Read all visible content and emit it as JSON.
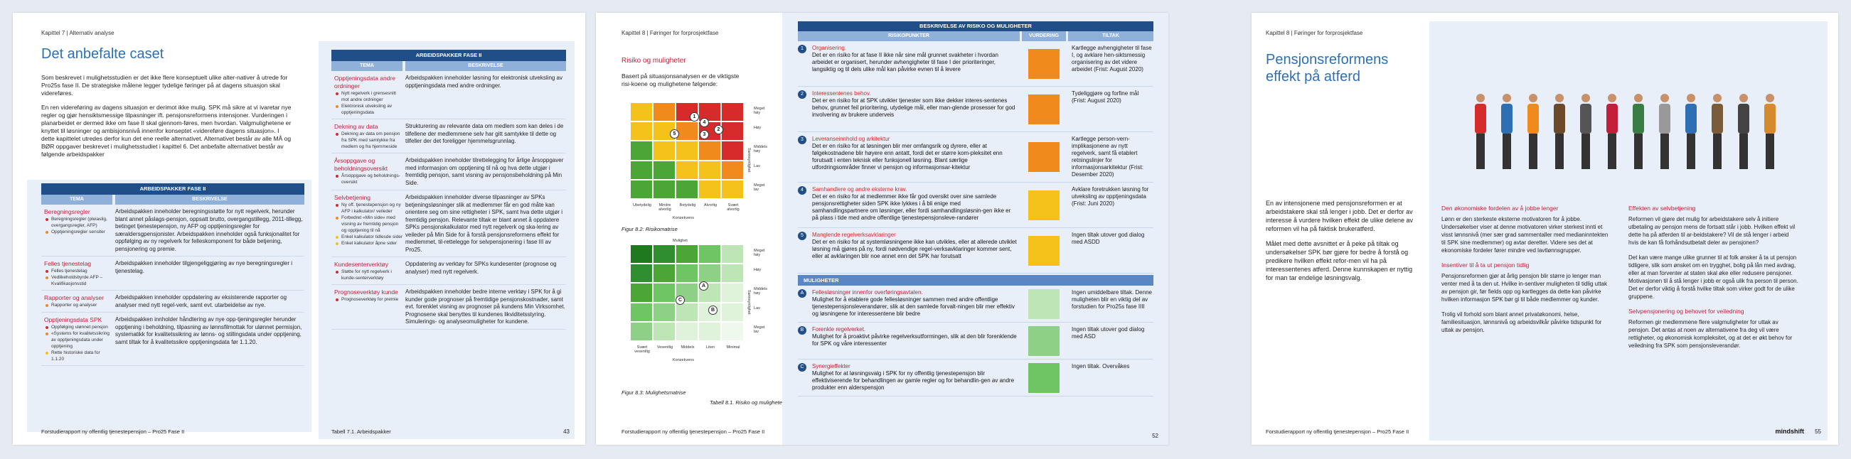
{
  "page1": {
    "chapter": "Kapittel 7 | Alternativ analyse",
    "title": "Det anbefalte caset",
    "intro_p1": "Som beskrevet i mulighetsstudien er det ikke flere konseptuelt ulike alter-nativer å utrede for Pro25s fase II. De strategiske målene legger tydelige føringer på at dagens situasjon skal videreføres.",
    "intro_p2": "En ren videreføring av dagens situasjon er derimot ikke mulig. SPK må sikre at vi ivaretar nye regler og gjør hensiktsmessige tilpasninger ift. pensjonsreformens intensjoner. Vurderingen i planarbeidet er dermed ikke om fase II skal gjennom-føres, men hvordan. Valgmulighetene er knyttet til løsninger og ambisjonsnivå innenfor konseptet «videreføre dagens situasjon». I dette kapittelet utredes derfor kun det ene reelle alternativet. Alternativet består av alle MÅ og BØR oppgaver beskrevet i mulighetsstudiet i kapittel 6. Det anbefalte alternativet består av følgende arbeidspakker",
    "table_title": "ARBEIDSPAKKER FASE II",
    "col_tema": "TEMA",
    "col_beskrivelse": "BESKRIVELSE",
    "left_rows": [
      {
        "tema": "Beregningsregler",
        "bullets": [
          {
            "c": "r",
            "t": "Beregningsregler (pleiaslig, overgangsregler, AFP)"
          },
          {
            "c": "o",
            "t": "Opptjeningsregler sensiter"
          }
        ],
        "desc": "Arbeidspakken inneholder beregningsstøtte for nytt regelverk, herunder blant annet påslags-pensjon, oppsatt brutto, overgangstillegg, 2011-tillegg, betinget tjenestepensjon, ny AFP og opptjeningsregler for særaldersgpensjonister. Arbeidspakken inneholder også funksjonalitet for oppfølging av ny regelverk for felleskomponent for både betjening, pensjonering og premie."
      },
      {
        "tema": "Felles tjenestelag",
        "bullets": [
          {
            "c": "r",
            "t": "Felles tjenestelag"
          },
          {
            "c": "o",
            "t": "Vedlikeholdsbyrde AFP – Kvalifikasjonsstid"
          }
        ],
        "desc": "Arbeidspakken inneholder tilgjengeliggjøring av nye beregningsregler i tjenestelag."
      },
      {
        "tema": "Rapporter og analyser",
        "bullets": [
          {
            "c": "o",
            "t": "Rapporter og analyser"
          }
        ],
        "desc": "Arbeidspakken inneholder oppdatering av eksisterende rapporter og analyser med nytt regel-verk, samt evt. utarbeidelse av nye."
      },
      {
        "tema": "Opptjeningsdata SPK",
        "bullets": [
          {
            "c": "r",
            "t": "Oppfølging ulønnet pensjon"
          },
          {
            "c": "o",
            "t": "«Systems for kvalitetssikring av opptjeningsdata under opptjening"
          },
          {
            "c": "y",
            "t": "Rette historiske data for 1.1.20"
          }
        ],
        "desc": "Arbeidspakken innholder håndtering av nye opp-tjeningsregler herunder opptjening i beholdning, tilpasning av lønnsfilmottak for ulønnet permisjon, systematikk for kvalitetssikring av lønns- og stillingsdata under opptjening, samt tiltak for å kvalitetssikre opptjeningsdata før 1.1.20."
      }
    ],
    "right_rows": [
      {
        "tema": "Opptjeningsdata andre ordninger",
        "bullets": [
          {
            "c": "r",
            "t": "Nytt regelverk i grensesnitt mot andre ordninger"
          },
          {
            "c": "o",
            "t": "Elektronisk utveksling av opptjeningsdata"
          }
        ],
        "desc": "Arbeidspakken inneholder løsning for elektronisk utveksling av opptjeningsdata med andre ordninger."
      },
      {
        "tema": "Dekning av data",
        "bullets": [
          {
            "c": "r",
            "t": "Dekning av data om pensjon fra SPK med samtykke fra medlem og fra hjemmeside"
          }
        ],
        "desc": "Strukturering av relevante data om medlem som kan deles i de tilfellene der medlemmene selv har gitt samtykke til dette og tilfeller der det foreligger hjemmelsgrunnlag."
      },
      {
        "tema": "Årsoppgave og beholdningsoversikt",
        "bullets": [
          {
            "c": "r",
            "t": "Årsoppgave og beholdnings-oversikt"
          }
        ],
        "desc": "Arbeidspakken inneholder tilrettelegging for årlige årsoppgaver med informasjon om opptjening til nå og hva dette utgjør i fremtidig pensjon, samt visning av pensjonsbeholdning på Min Side."
      },
      {
        "tema": "Selvbetjening",
        "bullets": [
          {
            "c": "r",
            "t": "Ny off. tjenestepensjon og ny AFP i kalkulator/ veileder"
          },
          {
            "c": "o",
            "t": "Forbedret «Min side» med visning av fremtidig pensjon og opptjening til nå"
          },
          {
            "c": "y",
            "t": "Enkel kalkulator tidlesde sider"
          },
          {
            "c": "y",
            "t": "Enkel kalkulator åpne sider"
          }
        ],
        "desc": "Arbeidspakken inneholder diverse tilpasninger av SPKs betjeningsløsninger slik at medlemmer får en god måte kan orientere seg om sine rettigheter i SPK, samt hva dette utgjør i fremtidig pensjon. Relevante tiltak er blant annet å oppdatere SPKs pensjonskalkulator med nytt regelverk og ska-lering av veileder på Min Side for å forstå pensjonsreformens effekt for medlemmet, til-rettelegge for selvpensjonering i fase III av Pro25."
      },
      {
        "tema": "Kundesenterverktøy",
        "bullets": [
          {
            "c": "r",
            "t": "Støtte for nytt regelverk i kunde-senterverktøy"
          }
        ],
        "desc": "Oppdatering av verktøy for SPKs kundesenter (prognose og analyser) med nytt regelverk."
      },
      {
        "tema": "Prognoseverktøy kunde",
        "bullets": [
          {
            "c": "r",
            "t": "Prognoseverktøy for premie"
          }
        ],
        "desc": "Arbeidspakken inneholder bedre interne verktøy i SPK for å gi kunder gode prognoser på fremtidige pensjonskostnader, samt evt. forenklet visning av prognoser på kundens Min Virksomhet. Prognosene skal benyttes til kundenes likviditetsstyring. Simulerings- og analyseomuligheter for kundene."
      }
    ],
    "footer": "Forstudierapport ny offentlig tjenestepensjon – Pro25 Fase II",
    "table_caption": "Tabell 7.1. Arbeidspakker",
    "page_num": "43"
  },
  "page2": {
    "chapter": "Kapittel 8 | Føringer for forprosjektfase",
    "section": "Risiko og muligheter",
    "intro": "Basert på situasjonsanalysen er de viktigste risi-koene og mulighetene følgende:",
    "risk_axis_y": "Sannsynlighet",
    "risk_axis_x": "Konsekvens",
    "risk_x_ticks": [
      "Ubetydelig",
      "Mindre alvorlig",
      "Betydelig",
      "Alvorlig",
      "Svært alvorlig"
    ],
    "risk_y_ticks": [
      "Meget høy",
      "Høy",
      "Middels høy",
      "Lav",
      "Meget lav"
    ],
    "risk_markers": [
      "1",
      "2",
      "3",
      "4",
      "5"
    ],
    "fig1": "Figur 8.2: Risikomatrise",
    "opp_axis_top": "Mulighet",
    "opp_axis_y": "Sannsynlighet",
    "opp_axis_x": "Konsekvens",
    "opp_x_ticks": [
      "Svært vesentlig",
      "Vesentlig",
      "Middels",
      "Liten",
      "Minimal"
    ],
    "opp_markers": [
      "A",
      "B",
      "C"
    ],
    "fig2": "Figur 8.3: Mulighetsmatrise",
    "table_title": "BESKRIVELSE AV RISIKO OG MULIGHETER",
    "col_risk": "RISIKOPUNKTER",
    "col_eval": "VURDERING",
    "col_tiltak": "TILTAK",
    "risks": [
      {
        "n": "1",
        "title": "Organisering.",
        "desc": "Det er en risiko for at fase II ikke når sine mål grunnet svakheter i hvordan arbeidet er organisert, herunder avhengigheter til fase I der prioriteringer, langsiktig og til dels ulike mål kan påvirke evnen til å levere",
        "color": "#f08a1c",
        "tiltak": "Kartlegge avhengigheter til fase I, og avklare hen-siktsmessig organisering av det videre arbeidet (Frist: August 2020)"
      },
      {
        "n": "2",
        "title": "Interessentenes behov.",
        "desc": "Det er en risiko for at SPK utvikler tjenester som ikke dekker interes-sentenes behov, grunnet feil prioritering, utydelige mål, eller man-glende prosesser for god involvering av brukere underveis",
        "color": "#f08a1c",
        "tiltak": "Tydeliggjøre og forfine mål (Frist: August 2020)"
      },
      {
        "n": "3",
        "title": "Leveranseinnhold og arkitektur",
        "desc": "Det er en risiko for at løsningen blir mer omfangsrik og dyrere, eller at følgekostnadene blir høyere enn antatt, fordi det er større kom-pleksitet enn forutsatt i enten teknisk eller funksjonell løsning. Blant særlige utfordringsområder finner vi pensjon og informasjonsar-kitektur",
        "color": "#f08a1c",
        "tiltak": "Kartlegge person-vern-implikasjonene av nytt regelverk, samt få etablert retningslinjer for informasjonsarkitektur (Frist: Desember 2020)"
      },
      {
        "n": "4",
        "title": "Samhandlere og andre eksterne krav.",
        "desc": "Det er en risiko for at medlemmer ikke får god oversikt over sine samlede pensjonsrettigheter siden SPK ikke lykkes i å bli enige med samhandlingspartnere om løsninger, eller fordi samhandlingsløsnin-gen ikke er på plass i tide med andre offentlige tjenestepensjonsleve-randører",
        "color": "#f4c21a",
        "tiltak": "Avklare foretrukken løsning for utveksling av opptjeningsdata (Frist: Juni 2020)"
      },
      {
        "n": "5",
        "title": "Manglende regelverksavklaringer",
        "desc": "Det er en risiko for at systemløsningene ikke kan utvikles, eller at allerede utviklet løsning må gjøres på ny, fordi nødvendige regel-verksavklaringer kommer sent, eller at avklaringen blir noe annet enn det SPK har forutsatt",
        "color": "#f4c21a",
        "tiltak": "Ingen tiltak utover god dialog med ASDD"
      }
    ],
    "opp_header": "MULIGHETER",
    "opps": [
      {
        "n": "A",
        "title": "Fellesløsninger innenfor overføringsavtalen.",
        "desc": "Mulighet for å etablere gode fellesløsninger sammen med andre offentlige tjenestepensjonsleverandører, slik at den samlede forvalt-ningen blir mer effektiv og løsningene for interessentene blir bedre",
        "color": "#bde5b5",
        "tiltak": "Ingen umiddelbare tiltak. Denne muligheten blir en viktig del av forstudien for Pro25s fase IIII"
      },
      {
        "n": "B",
        "title": "Forenkle regelverket.",
        "desc": "Mulighet for å proaktivt påvirke regelverksutformingen, slik at den blir forenklende for SPK og våre interessenter",
        "color": "#8ed085",
        "tiltak": "Ingen tiltak utover god dialog med ASD"
      },
      {
        "n": "C",
        "title": "Synergieffekter",
        "desc": "Mulighet for at løsningsvalg i SPK for ny offentlig tjenestepensjon blir effektiviserende for behandlingen av gamle regler og for behandlin-gen av andre produkter enn alderspensjon",
        "color": "#6fc464",
        "tiltak": "Ingen tiltak. Overvåkes"
      }
    ],
    "table_caption": "Tabell 8.1. Risiko og muligheter",
    "footer": "Forstudierapport ny offentlig tjenestepensjon – Pro25 Fase II",
    "page_num": "52"
  },
  "page3": {
    "chapter": "Kapittel 8 | Føringer for forprosjektfase",
    "title_line1": "Pensjonsreformens",
    "title_line2": "effekt på atferd",
    "intro_p1": "En av intensjonene med pensjonsreformen er at arbeidstakere skal stå lenger i jobb. Det er derfor av interesse å vurdere hvilken effekt de ulike delene av reformen vil ha på faktisk brukeratferd.",
    "intro_p2": "Målet med dette avsnittet er å peke på tiltak og undersøkelser SPK bør gjøre for bedre å forstå og predikere hvilken effekt refor-men vil ha på interessentenes atferd. Denne kunnskapen er nyttig for man tar endelige løsningsvalg.",
    "col1": [
      {
        "h": "Den økonomiske fordelen av å jobbe lenger",
        "t": "Lønn er den sterkeste eksterne motivatoren for å jobbe. Undersøkelser viser at denne motivatoren virker sterkest innti et visst lønnsnivå (mer sær grad sammentaller med medianinntekten til SPK sine medlemmer) og avtar deretter. Videre ses det at ekonomiske fordeler fører mindre ved lavtlønnsgrupper."
      },
      {
        "h": "Insentiver til å ta ut pensjon tidlig",
        "t": "Pensjonsreformen gjør at årlig pensjon blir større jo lenger man venter med å ta den ut. Hvilke in-sentiver muligheten til tidlig uttak av pensjon gir, før fields opp og kartlegges da dette kan påvirke hvilken informasjon SPK bør gi til både medlemmer og kunder."
      },
      {
        "h": "",
        "t": "Trolig vil forhold som blant annet privatøkonomi, helse, familiesituasjon, lønnsnivå og arbeidsvilkår påvirke tidspunkt for uttak av pensjon."
      }
    ],
    "col2": [
      {
        "h": "Effekten av selvbetjening",
        "t": "Reformen vil gjøre det mulig for arbeidstakere selv å initiere utbetaling av pensjon mens de fortsatt står i jobb. Hvilken effekt vil dette ha på atferden til ar-beidstakere? Vil de stå lenger i arbeid hvis de kan få forhåndsutbetalt deler av pensjonen?"
      },
      {
        "h": "",
        "t": "Det kan være mange ulike grunner til at folk ønsker å ta ut pensjon tidligere, slik som ønsket om en trygghet, bolig på lån med avdrag, eller at man forventer at staten skal øke eller redusere pensjoner. Motivasjonen til å stå lenger i jobb er også ulik fra person til person. Det er derfor viktig å forstå hvilke tiltak som virker godt for de ulike gruppene."
      },
      {
        "h": "Selvpensjonering og behovet for veiledning",
        "t": "Reformen gir medlemmene flere valgmuligheter for uttak av pensjon. Det antas at noen av alternativene fra deg vil være rettigheter, og økonomisk kompleksitet, og at det er økt behov for veiledning fra SPK som pensjonsleverandør."
      }
    ],
    "footer": "Forstudierapport ny offentlig tjenestepensjon – Pro25 Fase II",
    "brand": "mindshift",
    "page_num": "55"
  }
}
